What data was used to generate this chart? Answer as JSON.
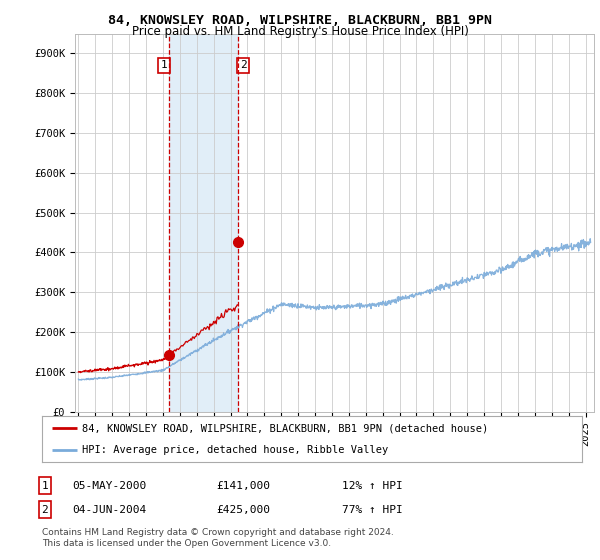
{
  "title": "84, KNOWSLEY ROAD, WILPSHIRE, BLACKBURN, BB1 9PN",
  "subtitle": "Price paid vs. HM Land Registry's House Price Index (HPI)",
  "ylabel_ticks": [
    "£0",
    "£100K",
    "£200K",
    "£300K",
    "£400K",
    "£500K",
    "£600K",
    "£700K",
    "£800K",
    "£900K"
  ],
  "ytick_values": [
    0,
    100000,
    200000,
    300000,
    400000,
    500000,
    600000,
    700000,
    800000,
    900000
  ],
  "ylim": [
    0,
    950000
  ],
  "xlim_start": 1994.8,
  "xlim_end": 2025.5,
  "sale1_x": 2000.35,
  "sale1_price": 141000,
  "sale2_x": 2004.45,
  "sale2_price": 425000,
  "vline1_x": 2000.35,
  "vline2_x": 2004.45,
  "legend_line1": "84, KNOWSLEY ROAD, WILPSHIRE, BLACKBURN, BB1 9PN (detached house)",
  "legend_line2": "HPI: Average price, detached house, Ribble Valley",
  "table_rows": [
    {
      "num": "1",
      "date": "05-MAY-2000",
      "price": "£141,000",
      "change": "12% ↑ HPI"
    },
    {
      "num": "2",
      "date": "04-JUN-2004",
      "price": "£425,000",
      "change": "77% ↑ HPI"
    }
  ],
  "footnote": "Contains HM Land Registry data © Crown copyright and database right 2024.\nThis data is licensed under the Open Government Licence v3.0.",
  "line_color_red": "#cc0000",
  "line_color_blue": "#7aabda",
  "vline_color": "#cc0000",
  "shade_color": "#daeaf7",
  "background_color": "#ffffff",
  "grid_color": "#cccccc",
  "title_fontsize": 9.5,
  "subtitle_fontsize": 8.5,
  "axis_fontsize": 7.5,
  "legend_fontsize": 7.5,
  "table_fontsize": 8,
  "footnote_fontsize": 6.5
}
